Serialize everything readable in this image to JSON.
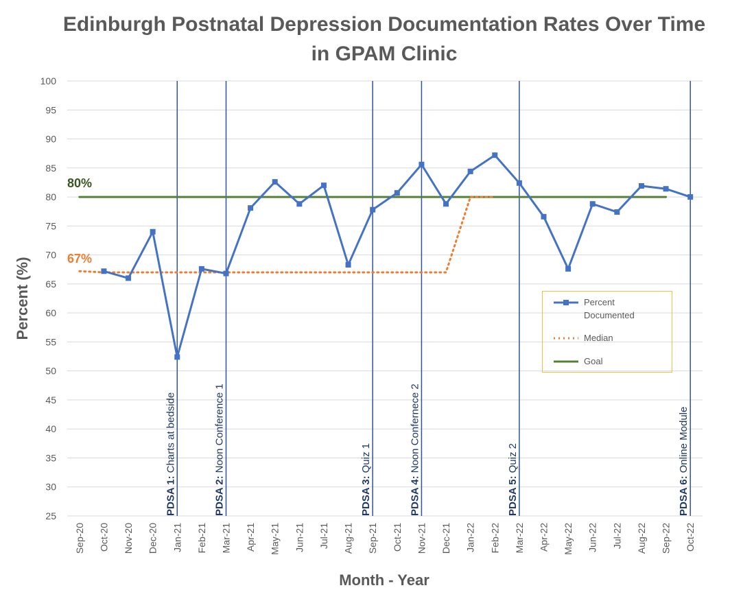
{
  "chart_data": {
    "type": "line",
    "title": [
      "Edinburgh Postnatal Depression Documentation Rates Over Time",
      "in GPAM Clinic"
    ],
    "x_label": "Month - Year",
    "y_label": "Percent (%)",
    "categories": [
      "Sep-20",
      "Oct-20",
      "Nov-20",
      "Dec-20",
      "Jan-21",
      "Feb-21",
      "Mar-21",
      "Apr-21",
      "May-21",
      "Jun-21",
      "Jul-21",
      "Aug-21",
      "Sep-21",
      "Oct-21",
      "Nov-21",
      "Dec-21",
      "Jan-22",
      "Feb-22",
      "Mar-22",
      "Apr-22",
      "May-22",
      "Jun-22",
      "Jul-22",
      "Aug-22",
      "Sep-22",
      "Oct-22"
    ],
    "series": [
      {
        "name": "Percent Documented",
        "color": "#4472c4",
        "style": "solid-marker",
        "values": [
          null,
          67.2,
          66.0,
          74.0,
          52.4,
          67.6,
          66.8,
          78.1,
          82.6,
          78.8,
          82.0,
          68.3,
          77.8,
          80.7,
          85.6,
          78.8,
          84.4,
          87.2,
          82.4,
          76.6,
          67.6,
          78.8,
          77.4,
          81.9,
          81.4,
          80.0
        ]
      },
      {
        "name": "Median",
        "color": "#ed7d31",
        "style": "dotted",
        "values": [
          67.2,
          67,
          67,
          67,
          67,
          67,
          67,
          67,
          67,
          67,
          67,
          67,
          67,
          67,
          67,
          67,
          80,
          80,
          null,
          null,
          null,
          null,
          null,
          null,
          null,
          null
        ]
      },
      {
        "name": "Goal",
        "color": "#548235",
        "style": "solid",
        "values": [
          80,
          80,
          80,
          80,
          80,
          80,
          80,
          80,
          80,
          80,
          80,
          80,
          80,
          80,
          80,
          80,
          80,
          80,
          80,
          80,
          80,
          80,
          80,
          80,
          80,
          null
        ]
      }
    ],
    "value_annotations": [
      {
        "text": "80%",
        "value": 80,
        "color": "#375623"
      },
      {
        "text": "67%",
        "value": 67,
        "color": "#ed7d31"
      }
    ],
    "events": [
      {
        "x": "Jan-21",
        "label": "PDSA 1:",
        "text": "Charts at bedside"
      },
      {
        "x": "Mar-21",
        "label": "PDSA 2:",
        "text": "Noon Conference 1"
      },
      {
        "x": "Sep-21",
        "label": "PDSA 3:",
        "text": "Quiz 1"
      },
      {
        "x": "Nov-21",
        "label": "PDSA 4:",
        "text": "Noon Confernece 2"
      },
      {
        "x": "Mar-22",
        "label": "PDSA 5:",
        "text": "Quiz 2"
      },
      {
        "x": "Oct-22",
        "label": "PDSA 6:",
        "text": "Online Module"
      }
    ],
    "ylim": [
      25,
      100
    ],
    "yticks": [
      25,
      30,
      35,
      40,
      45,
      50,
      55,
      60,
      65,
      70,
      75,
      80,
      85,
      90,
      95,
      100
    ],
    "grid": true
  }
}
